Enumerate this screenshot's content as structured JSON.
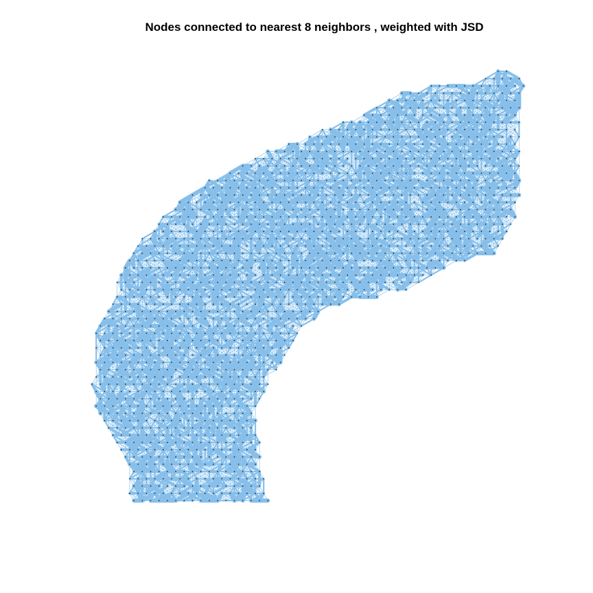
{
  "title": "Nodes connected to nearest 8 neighbors , weighted with JSD",
  "colors": {
    "edge": "#87BFEA",
    "node": "#1F2A2E",
    "background": "#FFFFFF"
  },
  "chart_data": {
    "type": "network",
    "nodes_description": "spatial grid of nodes",
    "neighbors_per_node": 8,
    "edge_weight": "JSD"
  }
}
